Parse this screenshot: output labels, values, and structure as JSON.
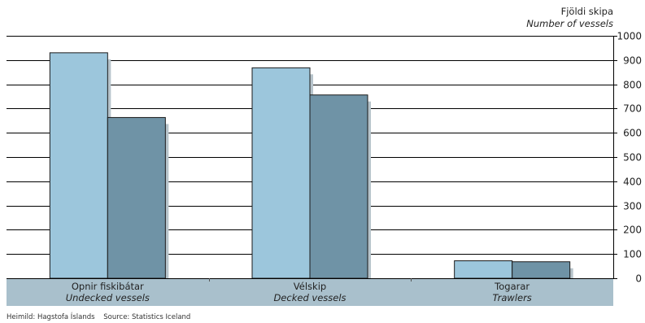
{
  "chart_data": {
    "type": "bar",
    "unit_label": "Fjöldi skipa",
    "unit_label_en": "Number of vessels",
    "categories": [
      "Opnir fiskibátar",
      "Vélskip",
      "Togarar"
    ],
    "categories_en": [
      "Undecked vessels",
      "Decked vessels",
      "Trawlers"
    ],
    "series": [
      {
        "values": [
          930,
          868,
          72
        ],
        "color": "#9cc6dc"
      },
      {
        "values": [
          663,
          756,
          68
        ],
        "color": "#6f93a6"
      }
    ],
    "ylim": [
      0,
      1000
    ],
    "yticks": [
      0,
      100,
      200,
      300,
      400,
      500,
      600,
      700,
      800,
      900,
      1000
    ],
    "axis_position": "right",
    "grid": true,
    "category_band_color": "#a9c0cc"
  },
  "source": {
    "is": "Heimild: Hagstofa Íslands",
    "en": "Source: Statistics Iceland"
  }
}
